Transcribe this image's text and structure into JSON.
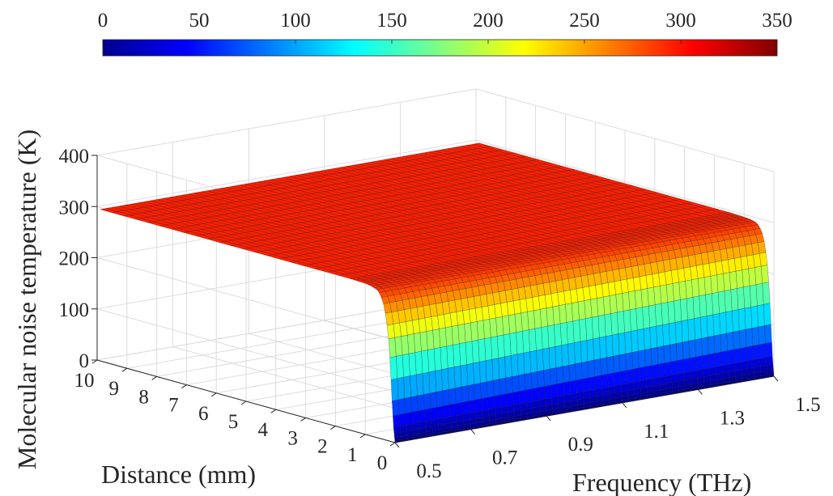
{
  "chart_data": {
    "type": "surface",
    "title": "",
    "zlabel": "Molecular noise temperature (K)",
    "ylabel": "Distance (mm)",
    "xlabel": "Frequency (THz)",
    "x_range": [
      0.5,
      1.5
    ],
    "y_range": [
      0,
      10
    ],
    "z_range": [
      0,
      400
    ],
    "x_ticks": [
      "0.5",
      "0.7",
      "0.9",
      "1.1",
      "1.3",
      "1.5"
    ],
    "y_ticks": [
      "0",
      "1",
      "2",
      "3",
      "4",
      "5",
      "6",
      "7",
      "8",
      "9",
      "10"
    ],
    "z_ticks": [
      "0",
      "100",
      "200",
      "300",
      "400"
    ],
    "colorbar": {
      "location": "top",
      "colormap": "jet",
      "range": [
        0,
        350
      ],
      "ticks": [
        "0",
        "50",
        "100",
        "150",
        "200",
        "250",
        "300",
        "350"
      ]
    },
    "plateau_temperature": 296,
    "surface_samples": {
      "distance": [
        0,
        0.05,
        0.1,
        0.15,
        0.2,
        0.3,
        0.4,
        0.5,
        0.6,
        0.8,
        1.0,
        1.5,
        2,
        4,
        6,
        8,
        10
      ],
      "frequency_0_5_temperature": [
        0,
        30,
        80,
        140,
        190,
        240,
        268,
        282,
        289,
        293,
        295,
        296,
        296,
        296,
        296,
        296,
        296
      ],
      "frequency_1_5_temperature": [
        0,
        40,
        100,
        160,
        205,
        252,
        275,
        286,
        291,
        294,
        295,
        296,
        296,
        296,
        296,
        296,
        296
      ]
    },
    "grid": true,
    "view": "3d-perspective"
  }
}
